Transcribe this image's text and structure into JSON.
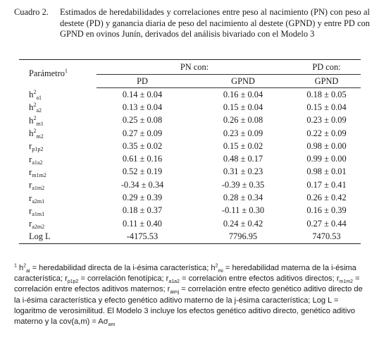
{
  "caption": {
    "label": "Cuadro 2.",
    "text": "Estimados de heredabilidades y correlaciones entre peso al nacimiento (PN) con peso al destete (PD) y ganancia diaria de peso del nacimiento al destete (GPND) y entre PD con GPND en ovinos Junín, derivados del análisis bivariado con el Modelo 3"
  },
  "table": {
    "param_header": "Parámetro",
    "param_header_sup": "1",
    "group1": "PN con:",
    "group2": "PD con:",
    "subheaders": [
      "PD",
      "GPND",
      "GPND"
    ],
    "rows": [
      {
        "base": "h",
        "sup": "2",
        "sub": "a1",
        "values": [
          "0.14 ± 0.04",
          "0.16 ± 0.04",
          "0.18 ± 0.05"
        ]
      },
      {
        "base": "h",
        "sup": "2",
        "sub": "a2",
        "values": [
          "0.13 ± 0.04",
          "0.15 ± 0.04",
          "0.15 ± 0.04"
        ]
      },
      {
        "base": "h",
        "sup": "2",
        "sub": "m1",
        "values": [
          "0.25 ± 0.08",
          "0.26 ± 0.08",
          "0.23 ± 0.09"
        ]
      },
      {
        "base": "h",
        "sup": "2",
        "sub": "m2",
        "values": [
          "0.27 ± 0.09",
          "0.23 ± 0.09",
          "0.22 ± 0.09"
        ]
      },
      {
        "base": "r",
        "sup": "",
        "sub": "p1p2",
        "values": [
          "0.35 ± 0.02",
          "0.15 ± 0.02",
          "0.98 ± 0.00"
        ]
      },
      {
        "base": "r",
        "sup": "",
        "sub": "a1a2",
        "values": [
          "0.61 ± 0.16",
          "0.48 ± 0.17",
          "0.99 ± 0.00"
        ]
      },
      {
        "base": "r",
        "sup": "",
        "sub": "m1m2",
        "values": [
          "0.52 ± 0.19",
          "0.31 ± 0.23",
          "0.98 ± 0.01"
        ]
      },
      {
        "base": "r",
        "sup": "",
        "sub": "a1m2",
        "values": [
          "-0.34 ± 0.34",
          "-0.39 ± 0.35",
          "0.17 ± 0.41"
        ]
      },
      {
        "base": "r",
        "sup": "",
        "sub": "a2m1",
        "values": [
          "0.29 ± 0.39",
          "0.28 ± 0.34",
          "0.26 ± 0.42"
        ]
      },
      {
        "base": "r",
        "sup": "",
        "sub": "a1m1",
        "values": [
          "0.18 ± 0.37",
          "-0.11 ± 0.30",
          "0.16 ± 0.39"
        ]
      },
      {
        "base": "r",
        "sup": "",
        "sub": "a2m2",
        "values": [
          "0.11 ± 0.40",
          "0.24 ± 0.42",
          "0.27 ± 0.44"
        ]
      }
    ],
    "loglik": {
      "label": "Log L",
      "values": [
        "-4175.53",
        "7796.95",
        "7470.53"
      ]
    }
  },
  "footnote": {
    "mark": "1",
    "t1": " h",
    "t1_sup": "2",
    "t1_sub": "ai",
    "t2": " = heredabilidad directa de la i-ésima característica; h",
    "t2_sup": "2",
    "t2_sub": "mi",
    "t3": " = heredabilidad materna de la i-ésima característica; r",
    "t3_sub": "p1p2",
    "t4": " = correlación fenotípica; r",
    "t4_sub": "a1a2",
    "t5": " = correlación entre efectos aditivos directos; r",
    "t5_sub": "m1m2",
    "t6": " = correlación entre efectos aditivos maternos; r",
    "t6_sub": "aimj",
    "t7": " = correlación entre efecto genético aditivo directo de la i-ésima característica y efecto genético aditivo materno de la j-ésima característica; Log L = logaritmo de verosimilitud. El Modelo 3 incluye los efectos genético aditivo directo, genético aditivo materno y la cov(a,m) = Aσ",
    "t7_sub": "am"
  }
}
